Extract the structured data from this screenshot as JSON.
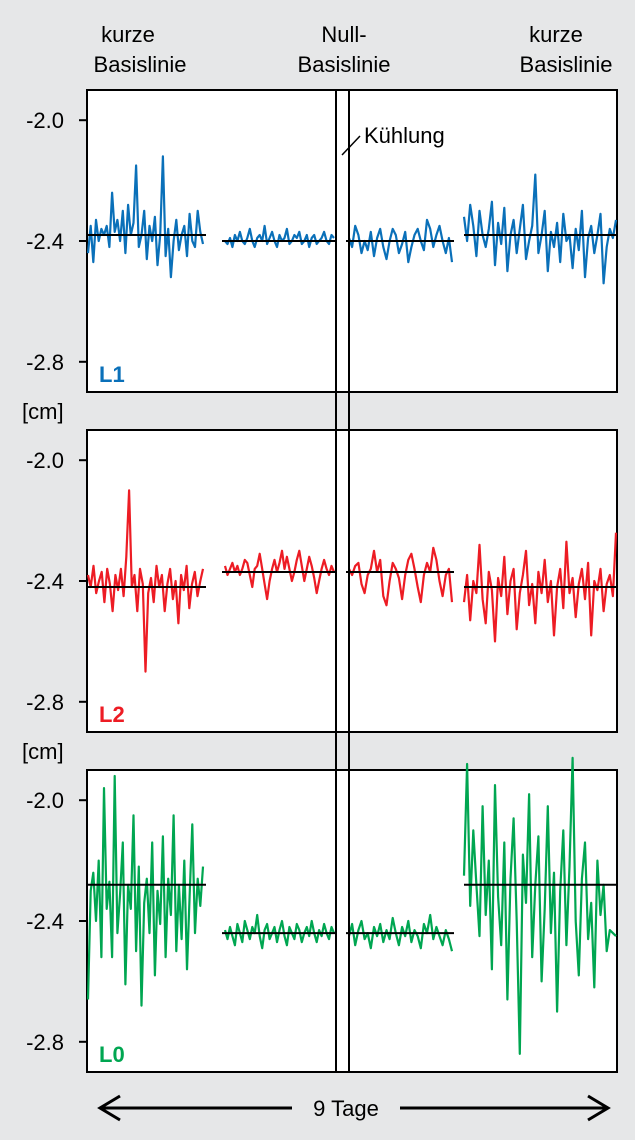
{
  "colors": {
    "background": "#e6e7e8",
    "L1": "#0a70b9",
    "L2": "#ed1c24",
    "L0": "#00a651",
    "axis": "#000000"
  },
  "header": {
    "left_line1": "kurze",
    "left_line2": "Basislinie",
    "center_line1": "Null-",
    "center_line2": "Basislinie",
    "right_line1": "kurze",
    "right_line2": "Basislinie"
  },
  "annotation": {
    "cooling": "Kühlung"
  },
  "unit_label": "[cm]",
  "duration_label": "9 Tage",
  "chart_data": [
    {
      "type": "line",
      "panel_label": "L1",
      "color": "#0a70b9",
      "ylim": [
        -2.9,
        -1.9
      ],
      "yticks": [
        -2.0,
        -2.4,
        -2.8
      ],
      "ytick_labels": [
        "-2.0",
        "-2.4",
        "-2.8"
      ],
      "means": [
        -2.38,
        -2.4,
        -2.4,
        -2.38
      ],
      "segments": [
        [
          -2.44,
          -2.35,
          -2.47,
          -2.33,
          -2.4,
          -2.36,
          -2.38,
          -2.35,
          -2.42,
          -2.24,
          -2.37,
          -2.33,
          -2.4,
          -2.3,
          -2.44,
          -2.28,
          -2.38,
          -2.34,
          -2.15,
          -2.42,
          -2.38,
          -2.3,
          -2.46,
          -2.35,
          -2.4,
          -2.32,
          -2.48,
          -2.38,
          -2.12,
          -2.45,
          -2.36,
          -2.52,
          -2.4,
          -2.33,
          -2.43,
          -2.38,
          -2.35,
          -2.45,
          -2.31,
          -2.4,
          -2.42,
          -2.3,
          -2.37,
          -2.41
        ],
        [
          -2.4,
          -2.41,
          -2.39,
          -2.42,
          -2.38,
          -2.4,
          -2.37,
          -2.4,
          -2.41,
          -2.39,
          -2.36,
          -2.4,
          -2.42,
          -2.39,
          -2.38,
          -2.4,
          -2.35,
          -2.41,
          -2.39,
          -2.37,
          -2.4,
          -2.42,
          -2.38,
          -2.4,
          -2.39,
          -2.36,
          -2.41,
          -2.4,
          -2.38,
          -2.39,
          -2.37,
          -2.41,
          -2.4,
          -2.38,
          -2.42,
          -2.39,
          -2.38,
          -2.41,
          -2.4,
          -2.39,
          -2.37,
          -2.4,
          -2.41,
          -2.38,
          -2.39
        ],
        [
          -2.39,
          -2.42,
          -2.35,
          -2.38,
          -2.44,
          -2.4,
          -2.43,
          -2.37,
          -2.45,
          -2.39,
          -2.36,
          -2.42,
          -2.46,
          -2.4,
          -2.36,
          -2.38,
          -2.44,
          -2.41,
          -2.37,
          -2.47,
          -2.42,
          -2.38,
          -2.36,
          -2.4,
          -2.43,
          -2.33,
          -2.36,
          -2.42,
          -2.38,
          -2.35,
          -2.4,
          -2.44,
          -2.39,
          -2.47
        ],
        [
          -2.32,
          -2.4,
          -2.28,
          -2.35,
          -2.45,
          -2.3,
          -2.38,
          -2.42,
          -2.36,
          -2.27,
          -2.48,
          -2.34,
          -2.41,
          -2.29,
          -2.5,
          -2.38,
          -2.33,
          -2.44,
          -2.36,
          -2.28,
          -2.46,
          -2.4,
          -2.35,
          -2.18,
          -2.44,
          -2.38,
          -2.3,
          -2.5,
          -2.37,
          -2.42,
          -2.34,
          -2.47,
          -2.31,
          -2.4,
          -2.38,
          -2.49,
          -2.36,
          -2.43,
          -2.3,
          -2.52,
          -2.39,
          -2.35,
          -2.44,
          -2.38,
          -2.31,
          -2.54,
          -2.42,
          -2.36,
          -2.39,
          -2.33
        ]
      ]
    },
    {
      "type": "line",
      "panel_label": "L2",
      "color": "#ed1c24",
      "ylim": [
        -2.9,
        -1.9
      ],
      "yticks": [
        -2.0,
        -2.4,
        -2.8
      ],
      "ytick_labels": [
        "-2.0",
        "-2.4",
        "-2.8"
      ],
      "means": [
        -2.42,
        -2.37,
        -2.37,
        -2.42
      ],
      "segments": [
        [
          -2.38,
          -2.42,
          -2.35,
          -2.44,
          -2.4,
          -2.37,
          -2.47,
          -2.36,
          -2.41,
          -2.5,
          -2.38,
          -2.43,
          -2.36,
          -2.45,
          -2.32,
          -2.1,
          -2.42,
          -2.38,
          -2.5,
          -2.36,
          -2.41,
          -2.7,
          -2.44,
          -2.39,
          -2.47,
          -2.35,
          -2.42,
          -2.38,
          -2.5,
          -2.41,
          -2.36,
          -2.46,
          -2.4,
          -2.54,
          -2.38,
          -2.43,
          -2.35,
          -2.49,
          -2.41,
          -2.37,
          -2.45,
          -2.4,
          -2.36
        ],
        [
          -2.35,
          -2.38,
          -2.36,
          -2.34,
          -2.37,
          -2.35,
          -2.38,
          -2.36,
          -2.33,
          -2.34,
          -2.38,
          -2.42,
          -2.36,
          -2.35,
          -2.31,
          -2.36,
          -2.41,
          -2.46,
          -2.4,
          -2.36,
          -2.33,
          -2.37,
          -2.34,
          -2.3,
          -2.36,
          -2.32,
          -2.36,
          -2.4,
          -2.37,
          -2.33,
          -2.3,
          -2.35,
          -2.4,
          -2.36,
          -2.32,
          -2.35,
          -2.39,
          -2.44,
          -2.4,
          -2.36,
          -2.33,
          -2.36,
          -2.38,
          -2.35,
          -2.37
        ],
        [
          -2.36,
          -2.38,
          -2.35,
          -2.34,
          -2.41,
          -2.44,
          -2.38,
          -2.36,
          -2.3,
          -2.37,
          -2.33,
          -2.45,
          -2.48,
          -2.4,
          -2.34,
          -2.36,
          -2.39,
          -2.46,
          -2.38,
          -2.33,
          -2.31,
          -2.36,
          -2.42,
          -2.47,
          -2.38,
          -2.34,
          -2.37,
          -2.29,
          -2.33,
          -2.4,
          -2.45,
          -2.38,
          -2.36,
          -2.47
        ],
        [
          -2.47,
          -2.38,
          -2.53,
          -2.4,
          -2.44,
          -2.28,
          -2.46,
          -2.54,
          -2.37,
          -2.43,
          -2.6,
          -2.39,
          -2.45,
          -2.32,
          -2.51,
          -2.4,
          -2.36,
          -2.56,
          -2.44,
          -2.38,
          -2.3,
          -2.48,
          -2.41,
          -2.54,
          -2.37,
          -2.44,
          -2.33,
          -2.47,
          -2.4,
          -2.58,
          -2.42,
          -2.36,
          -2.49,
          -2.27,
          -2.44,
          -2.39,
          -2.52,
          -2.41,
          -2.36,
          -2.46,
          -2.34,
          -2.58,
          -2.4,
          -2.43,
          -2.36,
          -2.5,
          -2.41,
          -2.38,
          -2.45,
          -2.24
        ]
      ]
    },
    {
      "type": "line",
      "panel_label": "L0",
      "color": "#00a651",
      "ylim": [
        -2.9,
        -1.9
      ],
      "yticks": [
        -2.0,
        -2.4,
        -2.8
      ],
      "ytick_labels": [
        "-2.0",
        "-2.4",
        "-2.8"
      ],
      "means": [
        -2.28,
        -2.44,
        -2.44,
        -2.28
      ],
      "segments": [
        [
          -2.66,
          -2.3,
          -2.24,
          -2.4,
          -2.2,
          -2.52,
          -1.96,
          -2.36,
          -2.27,
          -2.52,
          -1.92,
          -2.44,
          -2.31,
          -2.14,
          -2.61,
          -2.28,
          -2.36,
          -2.05,
          -2.5,
          -2.22,
          -2.68,
          -2.34,
          -2.26,
          -2.44,
          -2.14,
          -2.58,
          -2.3,
          -2.41,
          -2.12,
          -2.52,
          -2.26,
          -2.38,
          -2.05,
          -2.5,
          -2.28,
          -2.46,
          -2.2,
          -2.56,
          -2.32,
          -2.08,
          -2.44,
          -2.26,
          -2.35,
          -2.22
        ],
        [
          -2.43,
          -2.46,
          -2.42,
          -2.45,
          -2.48,
          -2.41,
          -2.44,
          -2.47,
          -2.4,
          -2.43,
          -2.46,
          -2.42,
          -2.44,
          -2.38,
          -2.45,
          -2.49,
          -2.43,
          -2.41,
          -2.46,
          -2.44,
          -2.42,
          -2.47,
          -2.43,
          -2.4,
          -2.45,
          -2.48,
          -2.42,
          -2.44,
          -2.46,
          -2.41,
          -2.43,
          -2.47,
          -2.44,
          -2.42,
          -2.45,
          -2.4,
          -2.44,
          -2.47,
          -2.43,
          -2.45,
          -2.41,
          -2.44,
          -2.46,
          -2.42,
          -2.44
        ],
        [
          -2.45,
          -2.41,
          -2.48,
          -2.43,
          -2.4,
          -2.46,
          -2.44,
          -2.49,
          -2.42,
          -2.45,
          -2.41,
          -2.47,
          -2.43,
          -2.46,
          -2.39,
          -2.44,
          -2.48,
          -2.42,
          -2.45,
          -2.4,
          -2.47,
          -2.43,
          -2.45,
          -2.49,
          -2.41,
          -2.44,
          -2.38,
          -2.46,
          -2.42,
          -2.45,
          -2.48,
          -2.43,
          -2.46,
          -2.5
        ],
        [
          -2.25,
          -1.88,
          -2.35,
          -2.1,
          -2.28,
          -2.45,
          -2.02,
          -2.38,
          -2.2,
          -2.56,
          -1.95,
          -2.32,
          -2.48,
          -2.14,
          -2.66,
          -2.26,
          -2.06,
          -2.4,
          -2.84,
          -2.18,
          -2.34,
          -1.98,
          -2.52,
          -2.28,
          -2.12,
          -2.6,
          -2.36,
          -2.02,
          -2.44,
          -2.24,
          -2.7,
          -2.3,
          -2.1,
          -2.48,
          -2.22,
          -1.86,
          -2.4,
          -2.58,
          -2.26,
          -2.14,
          -2.46,
          -2.34,
          -2.62,
          -2.2,
          -2.38,
          -2.28,
          -2.5,
          -2.43,
          -2.44,
          -2.45
        ]
      ]
    }
  ]
}
